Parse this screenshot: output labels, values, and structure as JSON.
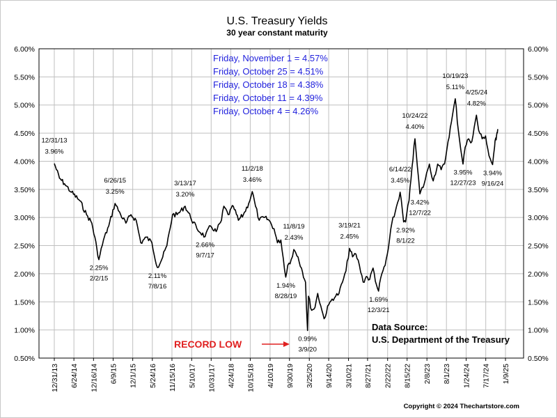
{
  "chart_data": {
    "type": "line",
    "title": "U.S. Treasury Yields",
    "subtitle": "30 year constant maturity",
    "ylim": [
      0.5,
      6.0
    ],
    "y_ticks": [
      "0.50%",
      "1.00%",
      "1.50%",
      "2.00%",
      "2.50%",
      "3.00%",
      "3.50%",
      "4.00%",
      "4.50%",
      "5.00%",
      "5.50%",
      "6.00%"
    ],
    "x_range": [
      "2013-12-31",
      "2025-01-09"
    ],
    "x_ticks": [
      "12/31/13",
      "6/24/14",
      "12/16/14",
      "6/9/15",
      "12/1/15",
      "5/24/16",
      "11/15/16",
      "5/10/17",
      "10/31/17",
      "4/24/18",
      "10/15/18",
      "4/10/19",
      "9/30/19",
      "3/25/20",
      "9/14/20",
      "3/10/21",
      "8/27/21",
      "2/22/22",
      "8/15/22",
      "2/8/23",
      "8/1/23",
      "1/24/24",
      "7/17/24",
      "1/9/25"
    ],
    "grid": true,
    "series": [
      {
        "x": [
          "2013-12-31",
          "2014-02-15",
          "2014-04-01",
          "2014-06-01",
          "2014-08-15",
          "2014-10-15",
          "2014-12-01",
          "2015-01-15",
          "2015-02-02",
          "2015-03-15",
          "2015-05-01",
          "2015-06-26",
          "2015-08-15",
          "2015-10-01",
          "2015-11-15",
          "2016-01-01",
          "2016-02-11",
          "2016-04-01",
          "2016-05-20",
          "2016-07-08",
          "2016-08-15",
          "2016-10-01",
          "2016-11-20",
          "2017-01-01",
          "2017-03-13",
          "2017-05-01",
          "2017-06-26",
          "2017-09-07",
          "2017-10-25",
          "2017-12-15",
          "2018-01-31",
          "2018-02-21",
          "2018-04-01",
          "2018-05-17",
          "2018-07-01",
          "2018-08-15",
          "2018-10-01",
          "2018-11-02",
          "2018-12-01",
          "2019-01-03",
          "2019-02-15",
          "2019-04-01",
          "2019-05-15",
          "2019-06-15",
          "2019-07-15",
          "2019-08-28",
          "2019-09-15",
          "2019-10-15",
          "2019-11-08",
          "2019-12-15",
          "2020-01-15",
          "2020-02-20",
          "2020-03-09",
          "2020-03-18",
          "2020-04-15",
          "2020-05-15",
          "2020-06-08",
          "2020-07-15",
          "2020-08-04",
          "2020-09-15",
          "2020-10-15",
          "2020-11-15",
          "2020-12-15",
          "2021-01-15",
          "2021-02-15",
          "2021-03-19",
          "2021-04-15",
          "2021-05-15",
          "2021-06-15",
          "2021-07-19",
          "2021-08-15",
          "2021-09-15",
          "2021-10-15",
          "2021-11-15",
          "2021-12-03",
          "2022-01-01",
          "2022-01-31",
          "2022-03-01",
          "2022-04-01",
          "2022-05-01",
          "2022-06-14",
          "2022-07-15",
          "2022-08-01",
          "2022-09-01",
          "2022-09-28",
          "2022-10-24",
          "2022-11-15",
          "2022-12-07",
          "2023-01-15",
          "2023-02-15",
          "2023-03-02",
          "2023-04-05",
          "2023-05-15",
          "2023-06-15",
          "2023-07-15",
          "2023-08-15",
          "2023-09-15",
          "2023-10-19",
          "2023-11-15",
          "2023-12-27",
          "2024-01-15",
          "2024-02-15",
          "2024-03-15",
          "2024-04-25",
          "2024-05-15",
          "2024-06-15",
          "2024-07-15",
          "2024-08-15",
          "2024-09-16",
          "2024-10-04",
          "2024-10-11",
          "2024-10-18",
          "2024-10-25",
          "2024-11-01"
        ],
        "values": [
          3.96,
          3.7,
          3.6,
          3.45,
          3.3,
          3.05,
          2.9,
          2.45,
          2.25,
          2.6,
          2.85,
          3.25,
          3.05,
          2.9,
          3.05,
          2.95,
          2.55,
          2.65,
          2.55,
          2.11,
          2.25,
          2.5,
          3.05,
          3.05,
          3.2,
          3.0,
          2.8,
          2.66,
          2.85,
          2.75,
          2.95,
          3.2,
          3.05,
          3.2,
          2.95,
          3.05,
          3.25,
          3.46,
          3.2,
          2.95,
          3.0,
          2.95,
          2.8,
          2.55,
          2.6,
          1.94,
          2.15,
          2.25,
          2.43,
          2.3,
          2.1,
          1.85,
          0.99,
          1.6,
          1.35,
          1.4,
          1.65,
          1.35,
          1.2,
          1.45,
          1.55,
          1.6,
          1.65,
          1.85,
          2.05,
          2.45,
          2.3,
          2.35,
          2.15,
          1.85,
          1.95,
          1.9,
          2.1,
          1.8,
          1.69,
          2.0,
          2.15,
          2.45,
          2.9,
          3.1,
          3.45,
          2.92,
          2.92,
          3.3,
          3.9,
          4.4,
          3.9,
          3.42,
          3.6,
          3.85,
          3.95,
          3.65,
          3.95,
          3.85,
          3.95,
          4.35,
          4.7,
          5.11,
          4.55,
          3.95,
          4.25,
          4.4,
          4.35,
          4.82,
          4.55,
          4.4,
          4.45,
          4.1,
          3.94,
          4.26,
          4.39,
          4.38,
          4.51,
          4.57
        ]
      }
    ],
    "annotations": [
      {
        "date": "12/31/13",
        "value": "3.96%",
        "x": "2013-12-31",
        "y": 3.96,
        "pos": "above"
      },
      {
        "date": "2/2/15",
        "value": "2.25%",
        "x": "2015-02-02",
        "y": 2.25,
        "pos": "below"
      },
      {
        "date": "6/26/15",
        "value": "3.25%",
        "x": "2015-06-26",
        "y": 3.25,
        "pos": "above"
      },
      {
        "date": "7/8/16",
        "value": "2.11%",
        "x": "2016-07-08",
        "y": 2.11,
        "pos": "below"
      },
      {
        "date": "3/13/17",
        "value": "3.20%",
        "x": "2017-03-13",
        "y": 3.2,
        "pos": "above"
      },
      {
        "date": "9/7/17",
        "value": "2.66%",
        "x": "2017-09-07",
        "y": 2.66,
        "pos": "below"
      },
      {
        "date": "11/2/18",
        "value": "3.46%",
        "x": "2018-11-02",
        "y": 3.46,
        "pos": "above"
      },
      {
        "date": "11/8/19",
        "value": "2.43%",
        "x": "2019-11-08",
        "y": 2.43,
        "pos": "above"
      },
      {
        "date": "8/28/19",
        "value": "1.94%",
        "x": "2019-08-28",
        "y": 1.94,
        "pos": "below"
      },
      {
        "date": "3/9/20",
        "value": "0.99%",
        "x": "2020-03-09",
        "y": 0.99,
        "pos": "below"
      },
      {
        "date": "3/19/21",
        "value": "2.45%",
        "x": "2021-03-19",
        "y": 2.45,
        "pos": "above"
      },
      {
        "date": "12/3/21",
        "value": "1.69%",
        "x": "2021-12-03",
        "y": 1.69,
        "pos": "below"
      },
      {
        "date": "6/14/22",
        "value": "3.45%",
        "x": "2022-06-14",
        "y": 3.45,
        "pos": "above"
      },
      {
        "date": "8/1/22",
        "value": "2.92%",
        "x": "2022-08-01",
        "y": 2.92,
        "pos": "below"
      },
      {
        "date": "10/24/22",
        "value": "4.40%",
        "x": "2022-10-24",
        "y": 4.4,
        "pos": "above"
      },
      {
        "date": "12/7/22",
        "value": "3.42%",
        "x": "2022-12-07",
        "y": 3.42,
        "pos": "below"
      },
      {
        "date": "10/19/23",
        "value": "5.11%",
        "x": "2023-10-19",
        "y": 5.11,
        "pos": "above"
      },
      {
        "date": "12/27/23",
        "value": "3.95%",
        "x": "2023-12-27",
        "y": 3.95,
        "pos": "below"
      },
      {
        "date": "4/25/24",
        "value": "4.82%",
        "x": "2024-04-25",
        "y": 4.82,
        "pos": "above"
      },
      {
        "date": "9/16/24",
        "value": "3.94%",
        "x": "2024-09-16",
        "y": 3.94,
        "pos": "below"
      }
    ],
    "recent_readings": [
      "Friday, November 1 = 4.57%",
      "Friday, October 25 = 4.51%",
      "Friday, October 18 = 4.38%",
      "Friday, October 11 = 4.39%",
      "Friday, October 4 = 4.26%"
    ],
    "record_low_label": "RECORD LOW",
    "source_lines": [
      "Data Source:",
      "U.S. Department of the Treasury"
    ],
    "copyright": "Copyright © 2024 Thechartstore.com",
    "colors": {
      "line": "#000000",
      "recent_text": "#2222dd",
      "record_low": "#e02020",
      "grid": "#bfbfbf",
      "background": "#ffffff"
    }
  }
}
